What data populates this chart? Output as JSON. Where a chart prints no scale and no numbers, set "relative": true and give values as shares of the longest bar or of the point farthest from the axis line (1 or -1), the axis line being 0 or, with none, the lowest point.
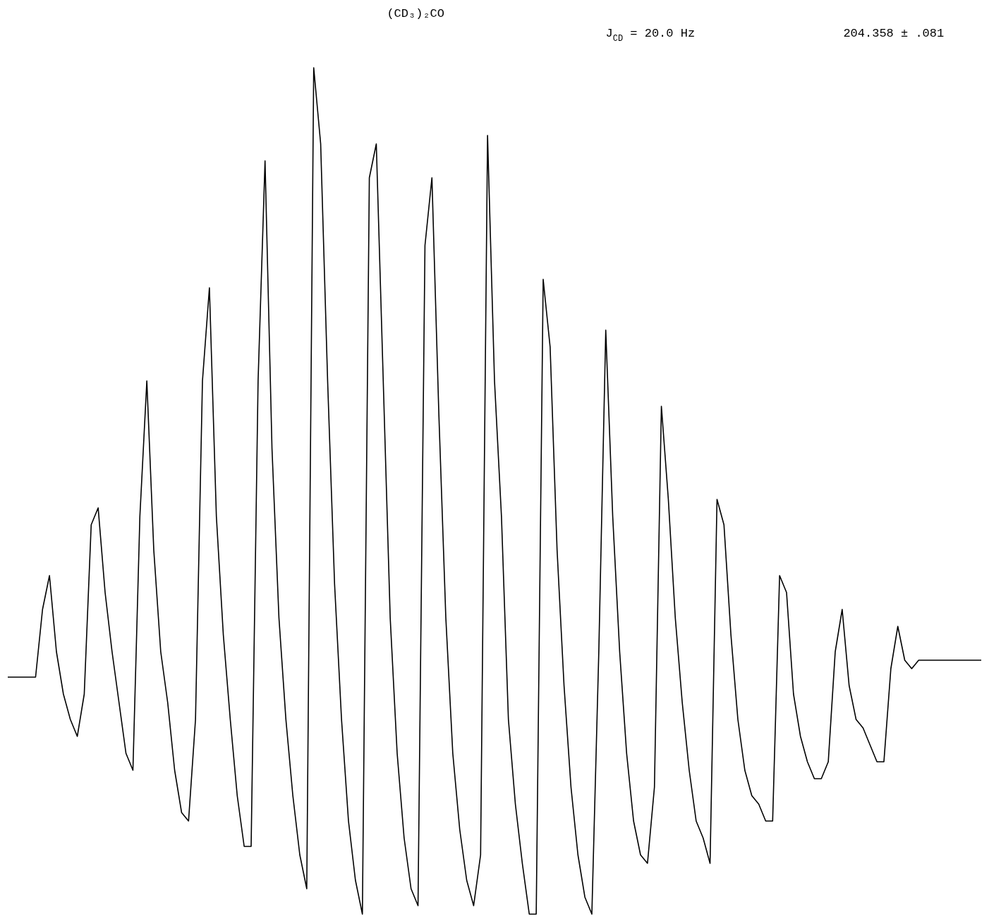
{
  "chart_data": {
    "type": "line",
    "relative": true,
    "title": "(CD₃)₂CO",
    "annotations": [
      "J$_{CD}$ = 20.0 Hz",
      "204.358 ± .081"
    ],
    "categories": [
      null,
      null,
      null,
      null,
      null,
      null,
      null,
      null,
      null,
      null,
      null,
      null,
      null,
      null,
      null,
      null,
      null,
      null,
      null,
      null,
      null,
      null,
      null,
      null,
      null,
      null,
      null,
      null,
      null,
      null,
      null,
      null,
      null,
      null,
      null,
      null,
      null,
      null,
      null,
      null,
      null,
      null,
      null,
      null,
      null,
      null,
      null,
      null,
      null,
      null,
      null,
      null,
      null,
      null,
      null,
      null,
      null,
      null,
      null,
      null,
      null,
      null,
      null,
      null,
      null,
      null,
      null,
      null,
      null,
      null,
      null,
      null,
      null,
      null,
      null,
      null,
      null,
      null,
      null,
      null,
      null,
      null,
      null,
      null,
      null,
      null,
      null,
      null,
      null,
      null,
      null,
      null,
      null,
      null,
      null,
      null,
      null,
      null,
      null,
      null,
      null,
      null,
      null,
      null,
      null,
      null,
      null,
      null,
      null,
      null,
      null,
      null,
      null,
      null,
      null,
      null,
      null,
      null,
      null,
      null,
      null,
      null,
      null,
      null,
      null,
      null,
      null,
      null,
      null,
      null,
      null,
      null,
      null,
      null,
      null,
      null,
      null,
      null,
      null,
      null,
      null
    ],
    "series": [
      {
        "color": "#000000",
        "values": [
          0.28,
          0.28,
          0.28,
          0.28,
          0.28,
          0.36,
          0.4,
          0.31,
          0.26,
          0.23,
          0.21,
          0.26,
          0.46,
          0.48,
          0.38,
          0.31,
          0.25,
          0.19,
          0.17,
          0.47,
          0.63,
          0.43,
          0.31,
          0.25,
          0.17,
          0.12,
          0.11,
          0.23,
          0.63,
          0.74,
          0.47,
          0.33,
          0.23,
          0.14,
          0.08,
          0.08,
          0.63,
          0.89,
          0.55,
          0.35,
          0.23,
          0.14,
          0.07,
          0.03,
          1,
          0.91,
          0.63,
          0.39,
          0.23,
          0.11,
          0.04,
          0.0,
          0.87,
          0.91,
          0.63,
          0.35,
          0.19,
          0.09,
          0.03,
          0.01,
          0.79,
          0.87,
          0.59,
          0.35,
          0.19,
          0.1,
          0.04,
          0.01,
          0.07,
          0.92,
          0.63,
          0.47,
          0.23,
          0.13,
          0.06,
          0.0,
          0.0,
          0.75,
          0.67,
          0.43,
          0.27,
          0.15,
          0.07,
          0.02,
          0,
          0.31,
          0.69,
          0.47,
          0.31,
          0.19,
          0.11,
          0.07,
          0.06,
          0.15,
          0.6,
          0.49,
          0.35,
          0.25,
          0.17,
          0.11,
          0.09,
          0.06,
          0.49,
          0.46,
          0.33,
          0.23,
          0.17,
          0.14,
          0.13,
          0.11,
          0.11,
          0.4,
          0.38,
          0.26,
          0.21,
          0.18,
          0.16,
          0.16,
          0.18,
          0.31,
          0.36,
          0.27,
          0.23,
          0.22,
          0.2,
          0.18,
          0.18,
          0.29,
          0.34,
          0.3,
          0.29,
          0.3,
          0.3,
          0.3,
          0.3,
          0.3,
          0.3,
          0.3,
          0.3,
          0.3,
          0.3
        ]
      }
    ],
    "grid": false,
    "marker": "none",
    "line_style": "solid"
  }
}
